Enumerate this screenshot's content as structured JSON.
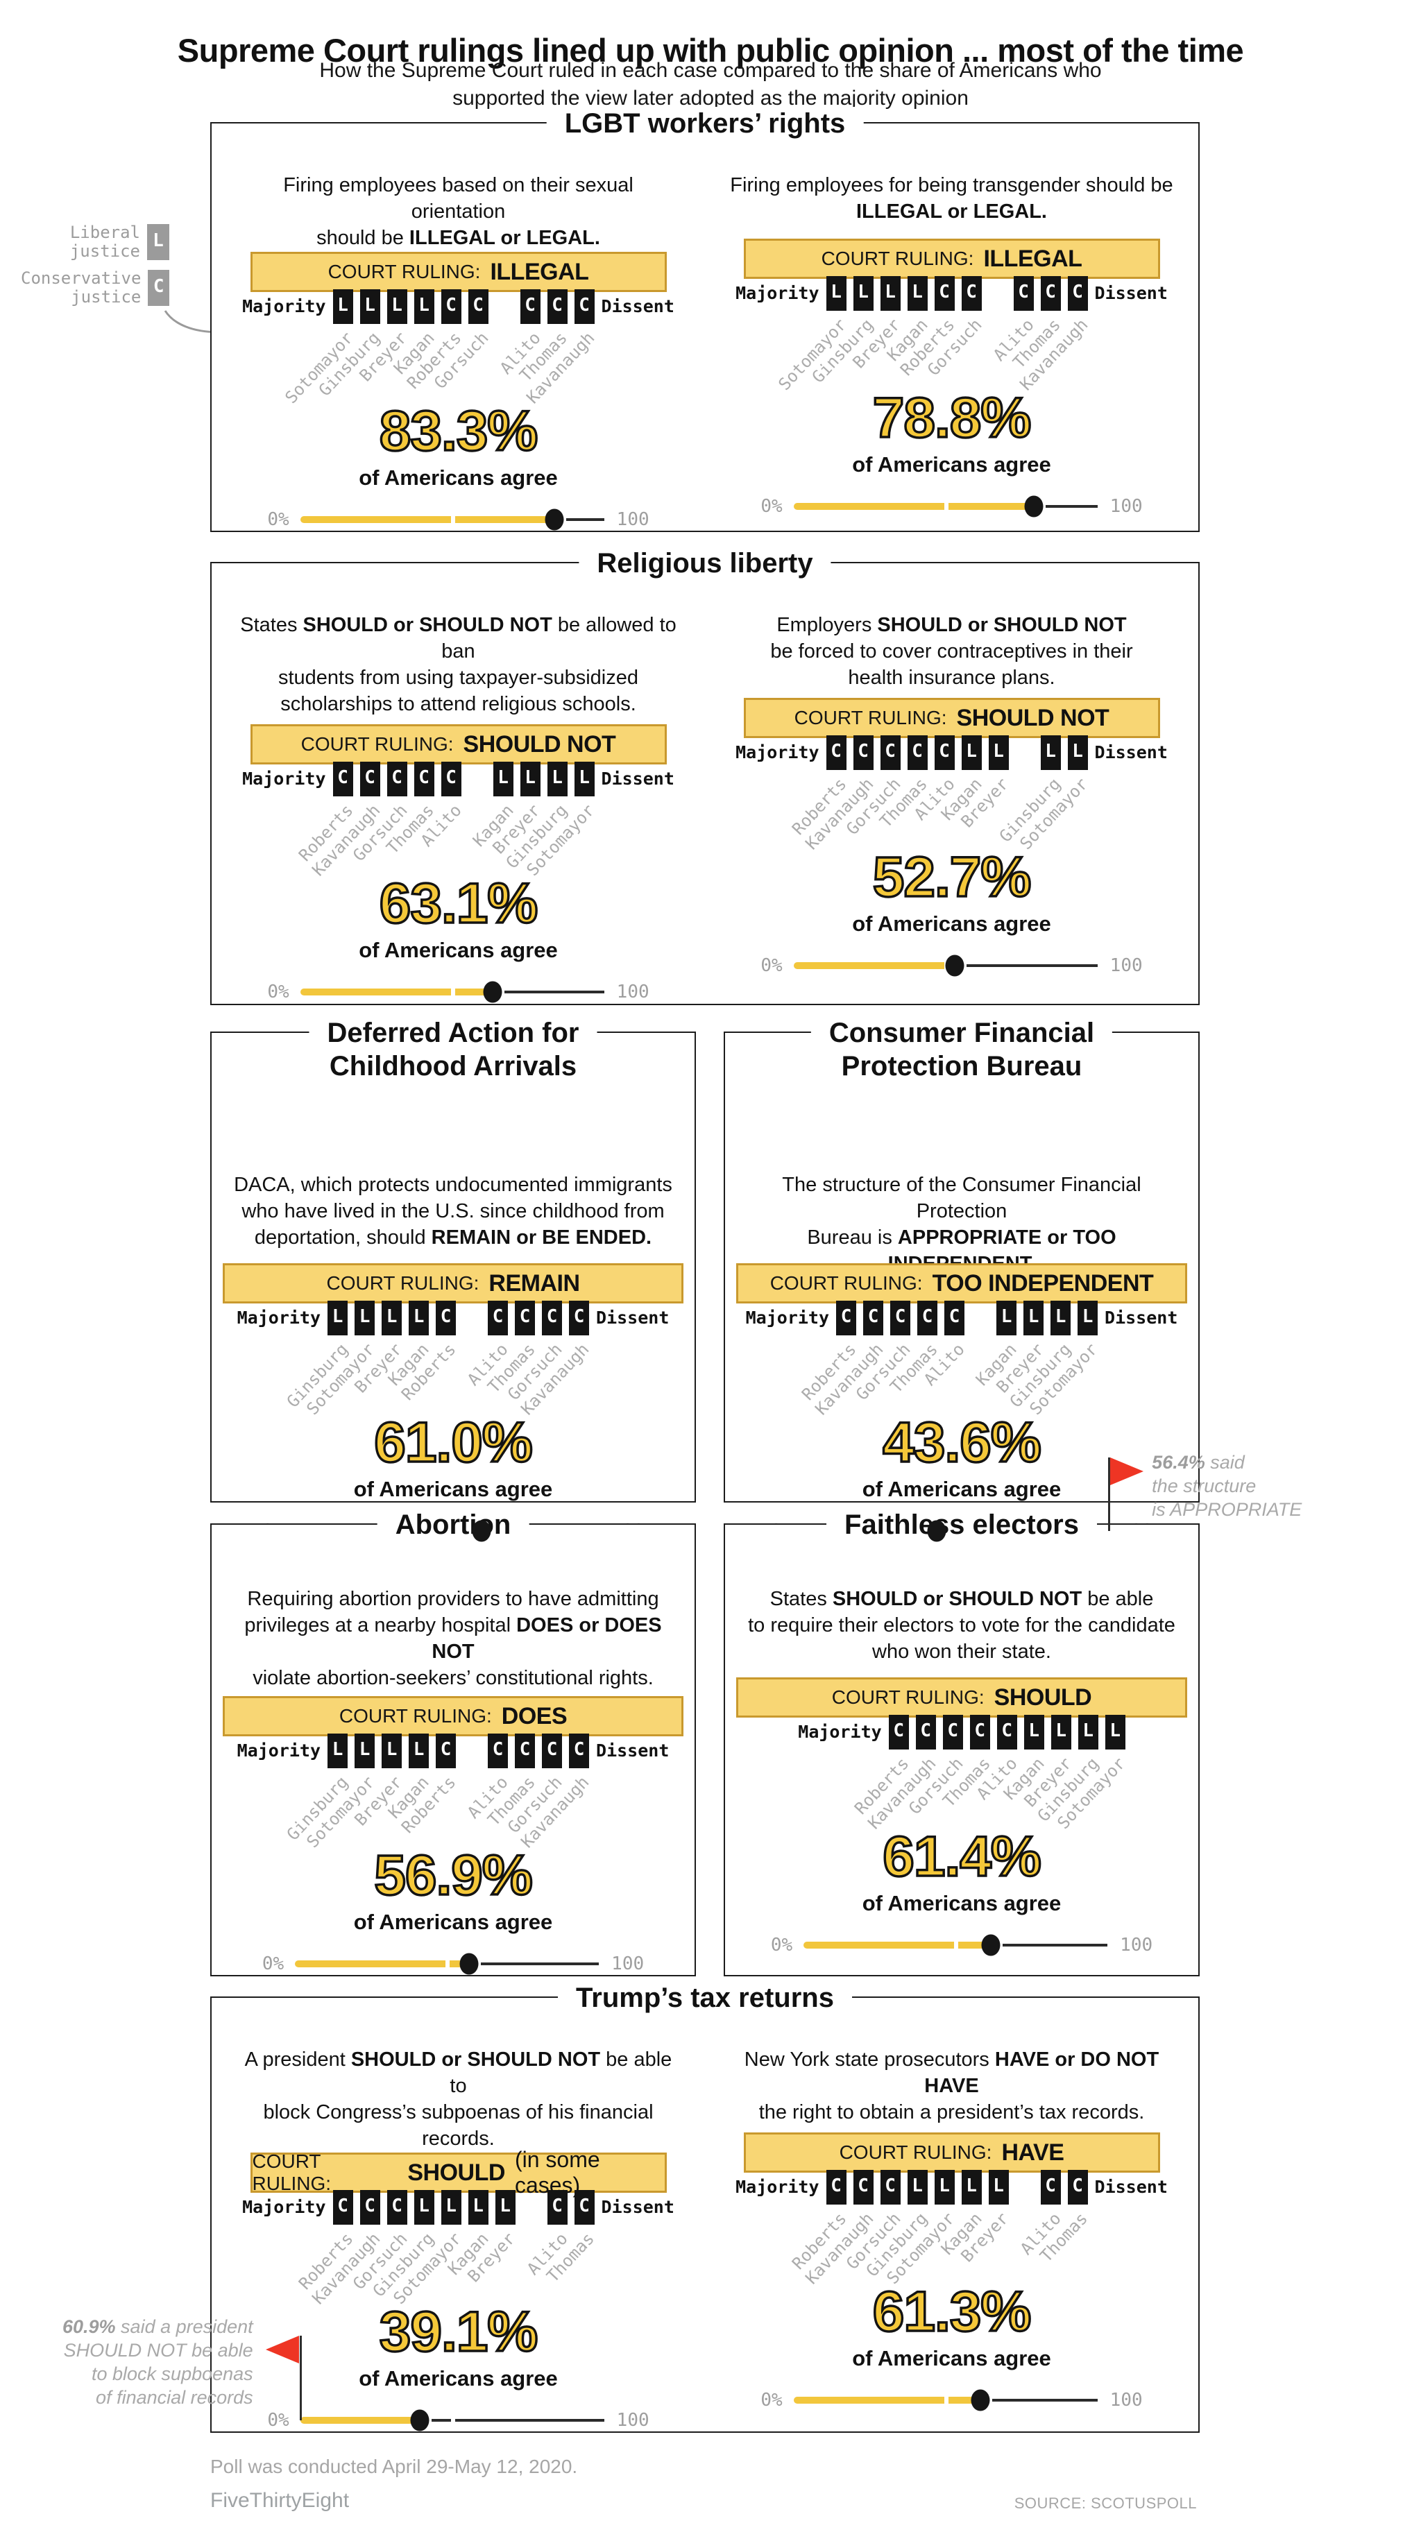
{
  "header": {
    "title": "Supreme Court rulings lined up with public opinion ... most of the time",
    "subtitle": "How the Supreme Court ruled in each case compared to the share of Americans who\nsupported the view later adopted as the majority opinion"
  },
  "strings": {
    "court_ruling": "COURT RULING:",
    "majority": "Majority",
    "dissent": "Dissent",
    "agree": "of Americans agree",
    "zero": "0%",
    "hundred": "100"
  },
  "legend": {
    "items": [
      {
        "label": "Liberal\njustice",
        "letter": "L"
      },
      {
        "label": "Conservative\njustice",
        "letter": "C"
      }
    ]
  },
  "colors": {
    "banner_yellow": "#F8D674",
    "banner_border": "#C9992E",
    "slider_yellow": "#F2C63C",
    "percent_yellow": "#F5C839",
    "flag_red": "#EE3524",
    "box_black": "#141414",
    "gray_text": "#A9A9A9"
  },
  "panels": [
    {
      "title": "LGBT workers’ rights",
      "cases": [
        {
          "question": [
            {
              "t": "Firing employees based on their sexual orientation\nshould be ",
              "b": false
            },
            {
              "t": "ILLEGAL or LEGAL.",
              "b": true
            }
          ],
          "ruling": "ILLEGAL",
          "m": [
            {
              "k": "L",
              "n": "Sotomayor"
            },
            {
              "k": "L",
              "n": "Ginsburg"
            },
            {
              "k": "L",
              "n": "Breyer"
            },
            {
              "k": "L",
              "n": "Kagan"
            },
            {
              "k": "C",
              "n": "Roberts"
            },
            {
              "k": "C",
              "n": "Gorsuch"
            }
          ],
          "d": [
            {
              "k": "C",
              "n": "Alito"
            },
            {
              "k": "C",
              "n": "Thomas"
            },
            {
              "k": "C",
              "n": "Kavanaugh"
            }
          ],
          "pct": "83.3%",
          "value": 83.3
        },
        {
          "question": [
            {
              "t": "Firing employees for being transgender should be\n",
              "b": false
            },
            {
              "t": "ILLEGAL or LEGAL.",
              "b": true
            }
          ],
          "ruling": "ILLEGAL",
          "m": [
            {
              "k": "L",
              "n": "Sotomayor"
            },
            {
              "k": "L",
              "n": "Ginsburg"
            },
            {
              "k": "L",
              "n": "Breyer"
            },
            {
              "k": "L",
              "n": "Kagan"
            },
            {
              "k": "C",
              "n": "Roberts"
            },
            {
              "k": "C",
              "n": "Gorsuch"
            }
          ],
          "d": [
            {
              "k": "C",
              "n": "Alito"
            },
            {
              "k": "C",
              "n": "Thomas"
            },
            {
              "k": "C",
              "n": "Kavanaugh"
            }
          ],
          "pct": "78.8%",
          "value": 78.8
        }
      ]
    },
    {
      "title": "Religious liberty",
      "cases": [
        {
          "question": [
            {
              "t": "States ",
              "b": false
            },
            {
              "t": "SHOULD or SHOULD NOT",
              "b": true
            },
            {
              "t": " be allowed to ban\nstudents from using taxpayer-subsidized\nscholarships to attend religious schools.",
              "b": false
            }
          ],
          "ruling": "SHOULD NOT",
          "m": [
            {
              "k": "C",
              "n": "Roberts"
            },
            {
              "k": "C",
              "n": "Kavanaugh"
            },
            {
              "k": "C",
              "n": "Gorsuch"
            },
            {
              "k": "C",
              "n": "Thomas"
            },
            {
              "k": "C",
              "n": "Alito"
            }
          ],
          "d": [
            {
              "k": "L",
              "n": "Kagan"
            },
            {
              "k": "L",
              "n": "Breyer"
            },
            {
              "k": "L",
              "n": "Ginsburg"
            },
            {
              "k": "L",
              "n": "Sotomayor"
            }
          ],
          "pct": "63.1%",
          "value": 63.1
        },
        {
          "question": [
            {
              "t": "Employers ",
              "b": false
            },
            {
              "t": "SHOULD or SHOULD NOT",
              "b": true
            },
            {
              "t": "\nbe forced to cover contraceptives in their\nhealth insurance plans.",
              "b": false
            }
          ],
          "ruling": "SHOULD NOT",
          "m": [
            {
              "k": "C",
              "n": "Roberts"
            },
            {
              "k": "C",
              "n": "Kavanaugh"
            },
            {
              "k": "C",
              "n": "Gorsuch"
            },
            {
              "k": "C",
              "n": "Thomas"
            },
            {
              "k": "C",
              "n": "Alito"
            },
            {
              "k": "L",
              "n": "Kagan"
            },
            {
              "k": "L",
              "n": "Breyer"
            }
          ],
          "d": [
            {
              "k": "L",
              "n": "Ginsburg"
            },
            {
              "k": "L",
              "n": "Sotomayor"
            }
          ],
          "pct": "52.7%",
          "value": 52.7
        }
      ]
    },
    {
      "title": "Deferred Action for\nChildhood Arrivals",
      "cases": [
        {
          "question": [
            {
              "t": "DACA, which protects undocumented immigrants\nwho have lived in the U.S. since childhood from\ndeportation, should ",
              "b": false
            },
            {
              "t": "REMAIN or BE ENDED.",
              "b": true
            }
          ],
          "ruling": "REMAIN",
          "m": [
            {
              "k": "L",
              "n": "Ginsburg"
            },
            {
              "k": "L",
              "n": "Sotomayor"
            },
            {
              "k": "L",
              "n": "Breyer"
            },
            {
              "k": "L",
              "n": "Kagan"
            },
            {
              "k": "C",
              "n": "Roberts"
            }
          ],
          "d": [
            {
              "k": "C",
              "n": "Alito"
            },
            {
              "k": "C",
              "n": "Thomas"
            },
            {
              "k": "C",
              "n": "Gorsuch"
            },
            {
              "k": "C",
              "n": "Kavanaugh"
            }
          ],
          "pct": "61.0%",
          "value": 61.0
        }
      ]
    },
    {
      "title": "Consumer Financial\nProtection Bureau",
      "cases": [
        {
          "question": [
            {
              "t": "The structure of the Consumer Financial Protection\nBureau is ",
              "b": false
            },
            {
              "t": "APPROPRIATE or TOO INDEPENDENT.",
              "b": true
            }
          ],
          "ruling": "TOO INDEPENDENT",
          "m": [
            {
              "k": "C",
              "n": "Roberts"
            },
            {
              "k": "C",
              "n": "Kavanaugh"
            },
            {
              "k": "C",
              "n": "Gorsuch"
            },
            {
              "k": "C",
              "n": "Thomas"
            },
            {
              "k": "C",
              "n": "Alito"
            }
          ],
          "d": [
            {
              "k": "L",
              "n": "Kagan"
            },
            {
              "k": "L",
              "n": "Breyer"
            },
            {
              "k": "L",
              "n": "Ginsburg"
            },
            {
              "k": "L",
              "n": "Sotomayor"
            }
          ],
          "pct": "43.6%",
          "value": 43.6,
          "flag": {
            "side": "right",
            "lead": "56.4%",
            "rest": " said\nthe structure\nis APPROPRIATE"
          }
        }
      ]
    },
    {
      "title": "Abortion",
      "cases": [
        {
          "question": [
            {
              "t": "Requiring abortion providers to have admitting\nprivileges at a nearby hospital ",
              "b": false
            },
            {
              "t": "DOES or DOES NOT",
              "b": true
            },
            {
              "t": "\nviolate abortion-seekers’ constitutional rights.",
              "b": false
            }
          ],
          "ruling": "DOES",
          "m": [
            {
              "k": "L",
              "n": "Ginsburg"
            },
            {
              "k": "L",
              "n": "Sotomayor"
            },
            {
              "k": "L",
              "n": "Breyer"
            },
            {
              "k": "L",
              "n": "Kagan"
            },
            {
              "k": "C",
              "n": "Roberts"
            }
          ],
          "d": [
            {
              "k": "C",
              "n": "Alito"
            },
            {
              "k": "C",
              "n": "Thomas"
            },
            {
              "k": "C",
              "n": "Gorsuch"
            },
            {
              "k": "C",
              "n": "Kavanaugh"
            }
          ],
          "pct": "56.9%",
          "value": 56.9
        }
      ]
    },
    {
      "title": "Faithless electors",
      "cases": [
        {
          "question": [
            {
              "t": "States ",
              "b": false
            },
            {
              "t": "SHOULD or SHOULD NOT",
              "b": true
            },
            {
              "t": " be able\nto require their electors to vote for the candidate\nwho won their state.",
              "b": false
            }
          ],
          "ruling": "SHOULD",
          "m": [
            {
              "k": "C",
              "n": "Roberts"
            },
            {
              "k": "C",
              "n": "Kavanaugh"
            },
            {
              "k": "C",
              "n": "Gorsuch"
            },
            {
              "k": "C",
              "n": "Thomas"
            },
            {
              "k": "C",
              "n": "Alito"
            },
            {
              "k": "L",
              "n": "Kagan"
            },
            {
              "k": "L",
              "n": "Breyer"
            },
            {
              "k": "L",
              "n": "Ginsburg"
            },
            {
              "k": "L",
              "n": "Sotomayor"
            }
          ],
          "d": [],
          "pct": "61.4%",
          "value": 61.4
        }
      ]
    },
    {
      "title": "Trump’s tax returns",
      "cases": [
        {
          "question": [
            {
              "t": "A president ",
              "b": false
            },
            {
              "t": "SHOULD or SHOULD NOT",
              "b": true
            },
            {
              "t": " be able to\nblock Congress’s subpoenas of his financial records.",
              "b": false
            }
          ],
          "ruling": "SHOULD",
          "ruling_suffix": "(in some cases)",
          "m": [
            {
              "k": "C",
              "n": "Roberts"
            },
            {
              "k": "C",
              "n": "Kavanaugh"
            },
            {
              "k": "C",
              "n": "Gorsuch"
            },
            {
              "k": "L",
              "n": "Ginsburg"
            },
            {
              "k": "L",
              "n": "Sotomayor"
            },
            {
              "k": "L",
              "n": "Kagan"
            },
            {
              "k": "L",
              "n": "Breyer"
            }
          ],
          "d": [
            {
              "k": "C",
              "n": "Alito"
            },
            {
              "k": "C",
              "n": "Thomas"
            }
          ],
          "pct": "39.1%",
          "value": 39.1,
          "flag": {
            "side": "left",
            "lead": "60.9%",
            "rest": " said a president\nSHOULD NOT be able\nto block supboenas\nof financial records"
          }
        },
        {
          "question": [
            {
              "t": "New York state prosecutors ",
              "b": false
            },
            {
              "t": "HAVE or DO NOT HAVE",
              "b": true
            },
            {
              "t": "\nthe right to obtain a president’s tax records.",
              "b": false
            }
          ],
          "ruling": "HAVE",
          "m": [
            {
              "k": "C",
              "n": "Roberts"
            },
            {
              "k": "C",
              "n": "Kavanaugh"
            },
            {
              "k": "C",
              "n": "Gorsuch"
            },
            {
              "k": "L",
              "n": "Ginsburg"
            },
            {
              "k": "L",
              "n": "Sotomayor"
            },
            {
              "k": "L",
              "n": "Kagan"
            },
            {
              "k": "L",
              "n": "Breyer"
            }
          ],
          "d": [
            {
              "k": "C",
              "n": "Alito"
            },
            {
              "k": "C",
              "n": "Thomas"
            }
          ],
          "pct": "61.3%",
          "value": 61.3
        }
      ]
    }
  ],
  "footer": {
    "note": "Poll was conducted April 29-May 12, 2020.",
    "brand": "FiveThirtyEight",
    "source": "SOURCE: SCOTUSPOLL"
  },
  "chart_data": {
    "type": "scatter",
    "title": "Supreme Court rulings lined up with public opinion ... most of the time",
    "xlabel": "% of Americans agree with the ruling",
    "x_range": [
      0,
      100
    ],
    "midpoint_tick": 50,
    "points": [
      {
        "panel": "LGBT workers’ rights",
        "case": "Firing employees based on sexual orientation",
        "court_ruling": "ILLEGAL",
        "pct_agree": 83.3,
        "majority": "L L L L C C (Sotomayor, Ginsburg, Breyer, Kagan, Roberts, Gorsuch)",
        "dissent": "C C C (Alito, Thomas, Kavanaugh)"
      },
      {
        "panel": "LGBT workers’ rights",
        "case": "Firing employees for being transgender",
        "court_ruling": "ILLEGAL",
        "pct_agree": 78.8,
        "majority": "L L L L C C (Sotomayor, Ginsburg, Breyer, Kagan, Roberts, Gorsuch)",
        "dissent": "C C C (Alito, Thomas, Kavanaugh)"
      },
      {
        "panel": "Religious liberty",
        "case": "States banning taxpayer-subsidized scholarships at religious schools",
        "court_ruling": "SHOULD NOT",
        "pct_agree": 63.1,
        "majority": "C C C C C (Roberts, Kavanaugh, Gorsuch, Thomas, Alito)",
        "dissent": "L L L L (Kagan, Breyer, Ginsburg, Sotomayor)"
      },
      {
        "panel": "Religious liberty",
        "case": "Employers forced to cover contraceptives",
        "court_ruling": "SHOULD NOT",
        "pct_agree": 52.7,
        "majority": "C C C C C L L (Roberts, Kavanaugh, Gorsuch, Thomas, Alito, Kagan, Breyer)",
        "dissent": "L L (Ginsburg, Sotomayor)"
      },
      {
        "panel": "Deferred Action for Childhood Arrivals",
        "case": "DACA should remain or be ended",
        "court_ruling": "REMAIN",
        "pct_agree": 61.0,
        "majority": "L L L L C (Ginsburg, Sotomayor, Breyer, Kagan, Roberts)",
        "dissent": "C C C C (Alito, Thomas, Gorsuch, Kavanaugh)"
      },
      {
        "panel": "Consumer Financial Protection Bureau",
        "case": "CFPB structure appropriate or too independent",
        "court_ruling": "TOO INDEPENDENT",
        "pct_agree": 43.6,
        "majority": "C C C C C (Roberts, Kavanaugh, Gorsuch, Thomas, Alito)",
        "dissent": "L L L L (Kagan, Breyer, Ginsburg, Sotomayor)",
        "note": "56.4% said the structure is APPROPRIATE"
      },
      {
        "panel": "Abortion",
        "case": "Admitting-privileges requirement violates rights",
        "court_ruling": "DOES",
        "pct_agree": 56.9,
        "majority": "L L L L C (Ginsburg, Sotomayor, Breyer, Kagan, Roberts)",
        "dissent": "C C C C (Alito, Thomas, Gorsuch, Kavanaugh)"
      },
      {
        "panel": "Faithless electors",
        "case": "States can require electors to vote for state winner",
        "court_ruling": "SHOULD",
        "pct_agree": 61.4,
        "majority": "C C C C C L L L L (Roberts, Kavanaugh, Gorsuch, Thomas, Alito, Kagan, Breyer, Ginsburg, Sotomayor)",
        "dissent": ""
      },
      {
        "panel": "Trump’s tax returns",
        "case": "President can block Congress’s subpoenas",
        "court_ruling": "SHOULD (in some cases)",
        "pct_agree": 39.1,
        "majority": "C C C L L L L (Roberts, Kavanaugh, Gorsuch, Ginsburg, Sotomayor, Kagan, Breyer)",
        "dissent": "C C (Alito, Thomas)",
        "note": "60.9% said a president SHOULD NOT be able to block supboenas of financial records"
      },
      {
        "panel": "Trump’s tax returns",
        "case": "NY prosecutors’ right to obtain tax records",
        "court_ruling": "HAVE",
        "pct_agree": 61.3,
        "majority": "C C C L L L L (Roberts, Kavanaugh, Gorsuch, Ginsburg, Sotomayor, Kagan, Breyer)",
        "dissent": "C C (Alito, Thomas)"
      }
    ]
  }
}
